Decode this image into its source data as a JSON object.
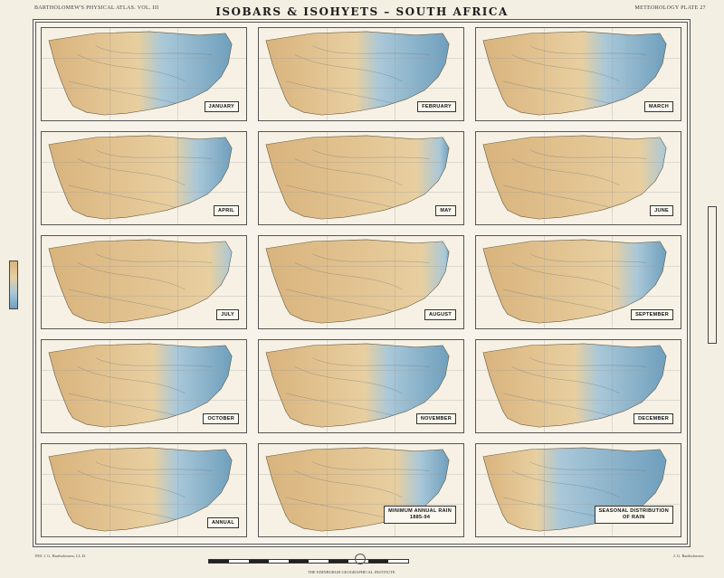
{
  "header": {
    "left": "BARTHOLOMEW'S PHYSICAL ATLAS. VOL. III",
    "title": "ISOBARS & ISOHYETS – SOUTH AFRICA",
    "right": "METEOROLOGY PLATE 27"
  },
  "maps": [
    {
      "label": "JANUARY",
      "wet": 0.62
    },
    {
      "label": "FEBRUARY",
      "wet": 0.62
    },
    {
      "label": "MARCH",
      "wet": 0.55
    },
    {
      "label": "APRIL",
      "wet": 0.35
    },
    {
      "label": "MAY",
      "wet": 0.15
    },
    {
      "label": "JUNE",
      "wet": 0.08
    },
    {
      "label": "JULY",
      "wet": 0.06
    },
    {
      "label": "AUGUST",
      "wet": 0.1
    },
    {
      "label": "SEPTEMBER",
      "wet": 0.3
    },
    {
      "label": "OCTOBER",
      "wet": 0.5
    },
    {
      "label": "NOVEMBER",
      "wet": 0.55
    },
    {
      "label": "DECEMBER",
      "wet": 0.6
    },
    {
      "label": "ANNUAL",
      "wet": 0.5
    },
    {
      "label": "MINIMUM ANNUAL RAIN",
      "sub": "1885-94",
      "wet": 0.3
    },
    {
      "label": "SEASONAL DISTRIBUTION",
      "sub": "OF RAIN",
      "wet": 0.9
    }
  ],
  "footer": {
    "left": "1901 J. G. Bartholomew, LL.D.",
    "center": "THE EDINBURGH GEOGRAPHICAL INSTITUTE",
    "right": "J. G. Bartholomew"
  },
  "colors": {
    "dry": "#d9b37c",
    "dry_light": "#e8cfa0",
    "wet": "#6f9fbd",
    "wet_light": "#a9c8d9",
    "frame": "#555555"
  }
}
